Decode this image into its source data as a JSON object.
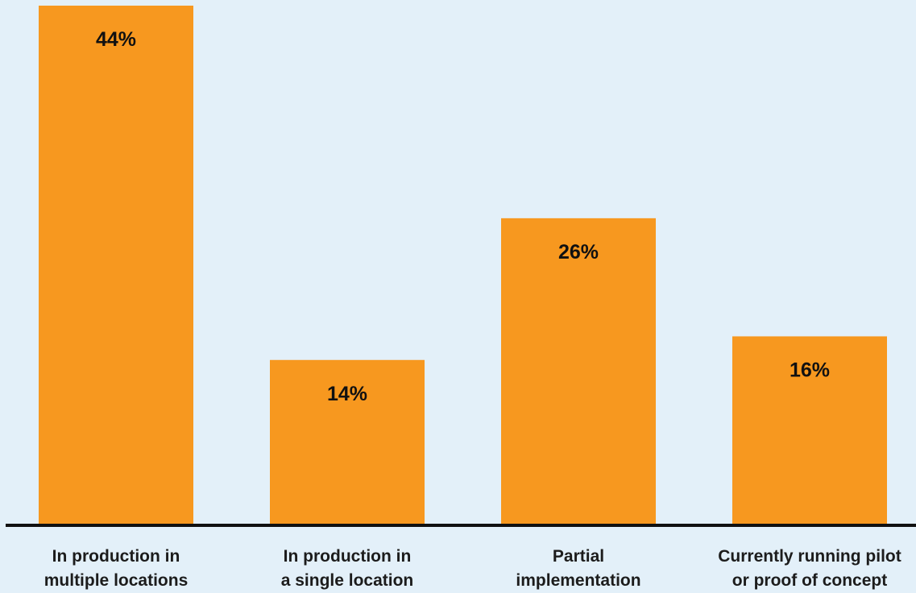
{
  "chart_data": {
    "type": "bar",
    "categories": [
      [
        "In production in",
        "multiple locations"
      ],
      [
        "In production in",
        "a single location"
      ],
      [
        "Partial",
        "implementation"
      ],
      [
        "Currently running pilot",
        "or proof of concept"
      ]
    ],
    "values": [
      44,
      14,
      26,
      16
    ],
    "value_labels": [
      "44%",
      "14%",
      "26%",
      "16%"
    ],
    "ylim": [
      0,
      44
    ],
    "grid": false,
    "legend": "none",
    "colors": {
      "background": "#e3f0f9",
      "bar": "#f7981f",
      "axis": "#111111",
      "text": "#111111"
    }
  }
}
